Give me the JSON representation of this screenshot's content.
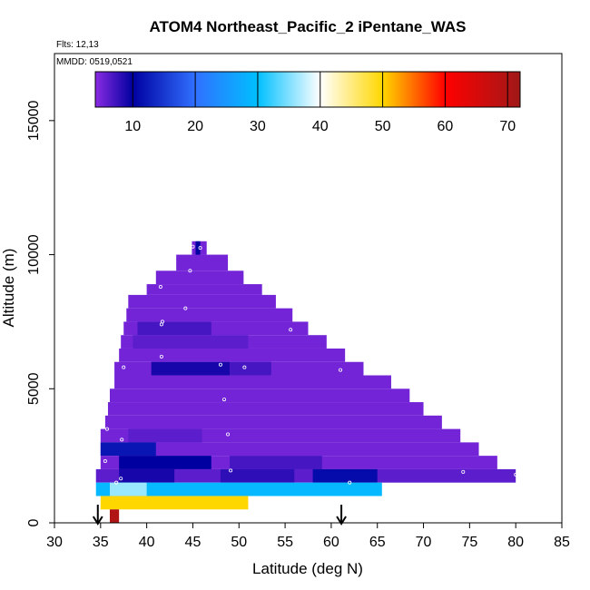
{
  "chart_data": {
    "type": "heatmap",
    "title": "ATOM4 Northeast_Pacific_2 iPentane_WAS",
    "annotations": {
      "flights": "Flts: 12,13",
      "dates": "MMDD: 0519,0521"
    },
    "xlabel": "Latitude (deg N)",
    "ylabel": "Altitude (m)",
    "xlim": [
      30,
      85
    ],
    "ylim": [
      0,
      17500
    ],
    "x_ticks": [
      30,
      35,
      40,
      45,
      50,
      55,
      60,
      65,
      70,
      75,
      80,
      85
    ],
    "y_ticks": [
      0,
      5000,
      10000,
      15000
    ],
    "colorbar": {
      "range": [
        4,
        72
      ],
      "ticks": [
        10,
        20,
        30,
        40,
        50,
        60,
        70
      ],
      "stops": [
        [
          4,
          "#8a2be2"
        ],
        [
          10,
          "#0000a0"
        ],
        [
          20,
          "#3070ff"
        ],
        [
          30,
          "#00c0ff"
        ],
        [
          40,
          "#ffffff"
        ],
        [
          50,
          "#ffd700"
        ],
        [
          60,
          "#ff0000"
        ],
        [
          72,
          "#a01818"
        ]
      ]
    },
    "cells": [
      {
        "lat0": 44.9,
        "lat1": 46.5,
        "alt0": 10000,
        "alt1": 10500,
        "value": 5
      },
      {
        "lat0": 45.3,
        "lat1": 45.8,
        "alt0": 9700,
        "alt1": 10500,
        "value": 10
      },
      {
        "lat0": 43.2,
        "lat1": 48.8,
        "alt0": 9400,
        "alt1": 10000,
        "value": 5
      },
      {
        "lat0": 41.0,
        "lat1": 50.5,
        "alt0": 8900,
        "alt1": 9400,
        "value": 5
      },
      {
        "lat0": 40.0,
        "lat1": 52.5,
        "alt0": 8500,
        "alt1": 8900,
        "value": 5
      },
      {
        "lat0": 38.0,
        "lat1": 54.0,
        "alt0": 8000,
        "alt1": 8500,
        "value": 5
      },
      {
        "lat0": 37.8,
        "lat1": 55.8,
        "alt0": 7500,
        "alt1": 8000,
        "value": 5
      },
      {
        "lat0": 37.5,
        "lat1": 57.5,
        "alt0": 7000,
        "alt1": 7500,
        "value": 5
      },
      {
        "lat0": 39.0,
        "lat1": 47.0,
        "alt0": 7000,
        "alt1": 7500,
        "value": 7
      },
      {
        "lat0": 37.2,
        "lat1": 59.5,
        "alt0": 6500,
        "alt1": 7000,
        "value": 5
      },
      {
        "lat0": 38.5,
        "lat1": 51.0,
        "alt0": 6500,
        "alt1": 7000,
        "value": 6
      },
      {
        "lat0": 37.0,
        "lat1": 61.5,
        "alt0": 6000,
        "alt1": 6500,
        "value": 5
      },
      {
        "lat0": 36.5,
        "lat1": 63.5,
        "alt0": 5500,
        "alt1": 6000,
        "value": 5
      },
      {
        "lat0": 40.5,
        "lat1": 49.0,
        "alt0": 5500,
        "alt1": 6000,
        "value": 9
      },
      {
        "lat0": 49.0,
        "lat1": 53.5,
        "alt0": 5500,
        "alt1": 6000,
        "value": 7
      },
      {
        "lat0": 36.5,
        "lat1": 66.5,
        "alt0": 5000,
        "alt1": 5500,
        "value": 5
      },
      {
        "lat0": 36.0,
        "lat1": 68.5,
        "alt0": 4500,
        "alt1": 5000,
        "value": 5
      },
      {
        "lat0": 35.8,
        "lat1": 70.0,
        "alt0": 4000,
        "alt1": 4500,
        "value": 5
      },
      {
        "lat0": 35.5,
        "lat1": 72.0,
        "alt0": 3500,
        "alt1": 4000,
        "value": 5
      },
      {
        "lat0": 35.0,
        "lat1": 74.0,
        "alt0": 3000,
        "alt1": 3500,
        "value": 5
      },
      {
        "lat0": 38.0,
        "lat1": 46.0,
        "alt0": 3000,
        "alt1": 3500,
        "value": 6
      },
      {
        "lat0": 35.0,
        "lat1": 76.0,
        "alt0": 2500,
        "alt1": 3000,
        "value": 5
      },
      {
        "lat0": 35.0,
        "lat1": 41.0,
        "alt0": 2500,
        "alt1": 3000,
        "value": 12
      },
      {
        "lat0": 35.0,
        "lat1": 78.0,
        "alt0": 2000,
        "alt1": 2500,
        "value": 5
      },
      {
        "lat0": 37.0,
        "lat1": 47.0,
        "alt0": 2000,
        "alt1": 2500,
        "value": 10
      },
      {
        "lat0": 49.0,
        "lat1": 59.0,
        "alt0": 2000,
        "alt1": 2500,
        "value": 7
      },
      {
        "lat0": 34.5,
        "lat1": 80.0,
        "alt0": 1500,
        "alt1": 2000,
        "value": 6
      },
      {
        "lat0": 37.0,
        "lat1": 43.0,
        "alt0": 1500,
        "alt1": 2000,
        "value": 9
      },
      {
        "lat0": 48.0,
        "lat1": 56.0,
        "alt0": 1500,
        "alt1": 2000,
        "value": 8
      },
      {
        "lat0": 58.0,
        "lat1": 65.0,
        "alt0": 1500,
        "alt1": 2000,
        "value": 11
      },
      {
        "lat0": 34.5,
        "lat1": 65.5,
        "alt0": 1000,
        "alt1": 1500,
        "value": 29
      },
      {
        "lat0": 36.0,
        "lat1": 40.0,
        "alt0": 1000,
        "alt1": 1500,
        "value": 36
      },
      {
        "lat0": 35.0,
        "lat1": 51.0,
        "alt0": 500,
        "alt1": 1000,
        "value": 50
      },
      {
        "lat0": 36.0,
        "lat1": 37.0,
        "alt0": 0,
        "alt1": 500,
        "value": 70
      }
    ],
    "points": [
      {
        "lat": 45.0,
        "alt": 10300
      },
      {
        "lat": 45.8,
        "alt": 10250
      },
      {
        "lat": 44.7,
        "alt": 9400
      },
      {
        "lat": 41.5,
        "alt": 8800
      },
      {
        "lat": 38.2,
        "alt": 8600
      },
      {
        "lat": 44.2,
        "alt": 8000
      },
      {
        "lat": 41.7,
        "alt": 7500
      },
      {
        "lat": 41.6,
        "alt": 7400
      },
      {
        "lat": 55.6,
        "alt": 7200
      },
      {
        "lat": 61.0,
        "alt": 6700
      },
      {
        "lat": 41.6,
        "alt": 6200
      },
      {
        "lat": 37.5,
        "alt": 5800
      },
      {
        "lat": 48.0,
        "alt": 5900
      },
      {
        "lat": 50.6,
        "alt": 5800
      },
      {
        "lat": 61.0,
        "alt": 5700
      },
      {
        "lat": 48.4,
        "alt": 4600
      },
      {
        "lat": 35.7,
        "alt": 3500
      },
      {
        "lat": 37.3,
        "alt": 3100
      },
      {
        "lat": 48.8,
        "alt": 3300
      },
      {
        "lat": 35.5,
        "alt": 2300
      },
      {
        "lat": 49.1,
        "alt": 1950
      },
      {
        "lat": 74.3,
        "alt": 1900
      },
      {
        "lat": 80.0,
        "alt": 1800
      },
      {
        "lat": 36.7,
        "alt": 1500
      },
      {
        "lat": 37.2,
        "alt": 1650
      },
      {
        "lat": 62.0,
        "alt": 1500
      }
    ],
    "arrows": [
      34.7,
      61.1
    ]
  }
}
